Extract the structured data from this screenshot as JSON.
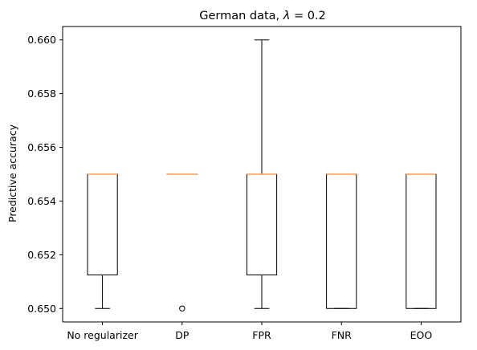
{
  "chart_data": {
    "type": "box",
    "title_prefix": "German data, ",
    "title_lambda": "λ",
    "title_suffix": " =  0.2",
    "ylabel": "Predictive accuracy",
    "xlabel": "",
    "ylim": [
      0.6495,
      0.6605
    ],
    "yticks": [
      0.65,
      0.652,
      0.654,
      0.656,
      0.658,
      0.66
    ],
    "ytick_labels": [
      "0.650",
      "0.652",
      "0.654",
      "0.656",
      "0.658",
      "0.660"
    ],
    "grid": false,
    "categories": [
      "No regularizer",
      "DP",
      "FPR",
      "FNR",
      "EOO"
    ],
    "boxes": [
      {
        "category": "No regularizer",
        "whisker_low": 0.65,
        "q1": 0.65125,
        "median": 0.655,
        "q3": 0.655,
        "whisker_high": 0.655,
        "outliers": []
      },
      {
        "category": "DP",
        "whisker_low": 0.655,
        "q1": 0.655,
        "median": 0.655,
        "q3": 0.655,
        "whisker_high": 0.655,
        "outliers": [
          0.65
        ]
      },
      {
        "category": "FPR",
        "whisker_low": 0.65,
        "q1": 0.65125,
        "median": 0.655,
        "q3": 0.655,
        "whisker_high": 0.66,
        "outliers": []
      },
      {
        "category": "FNR",
        "whisker_low": 0.65,
        "q1": 0.65,
        "median": 0.655,
        "q3": 0.655,
        "whisker_high": 0.655,
        "outliers": []
      },
      {
        "category": "EOO",
        "whisker_low": 0.65,
        "q1": 0.65,
        "median": 0.655,
        "q3": 0.655,
        "whisker_high": 0.655,
        "outliers": []
      }
    ],
    "colors": {
      "box": "#000000",
      "median": "#f0a060",
      "outlier": "#000000"
    }
  }
}
